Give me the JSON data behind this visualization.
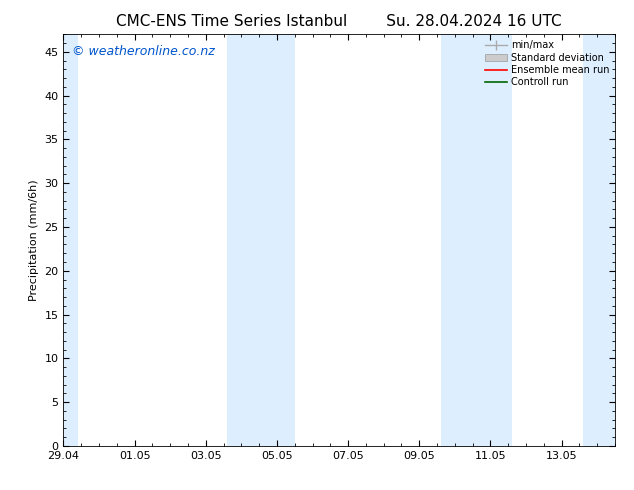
{
  "title_left": "CMC-ENS Time Series Istanbul",
  "title_right": "Su. 28.04.2024 16 UTC",
  "ylabel": "Precipitation (mm/6h)",
  "watermark": "© weatheronline.co.nz",
  "watermark_color": "#0055cc",
  "ylim": [
    0,
    47
  ],
  "yticks": [
    0,
    5,
    10,
    15,
    20,
    25,
    30,
    35,
    40,
    45
  ],
  "xlim": [
    0,
    15.5
  ],
  "xtick_labels": [
    "29.04",
    "01.05",
    "03.05",
    "05.05",
    "07.05",
    "09.05",
    "11.05",
    "13.05"
  ],
  "xtick_positions": [
    0,
    2,
    4,
    6,
    8,
    10,
    12,
    14
  ],
  "shaded_regions": [
    [
      0,
      0.4
    ],
    [
      4.6,
      6.5
    ],
    [
      10.6,
      12.6
    ],
    [
      14.6,
      15.5
    ]
  ],
  "shade_color": "#ddeeff",
  "background_color": "#ffffff",
  "legend_labels": [
    "min/max",
    "Standard deviation",
    "Ensemble mean run",
    "Controll run"
  ],
  "legend_colors": [
    "#aaaaaa",
    "#cccccc",
    "#ff0000",
    "#006600"
  ],
  "title_fontsize": 11,
  "axis_fontsize": 8,
  "tick_fontsize": 8,
  "watermark_fontsize": 9
}
